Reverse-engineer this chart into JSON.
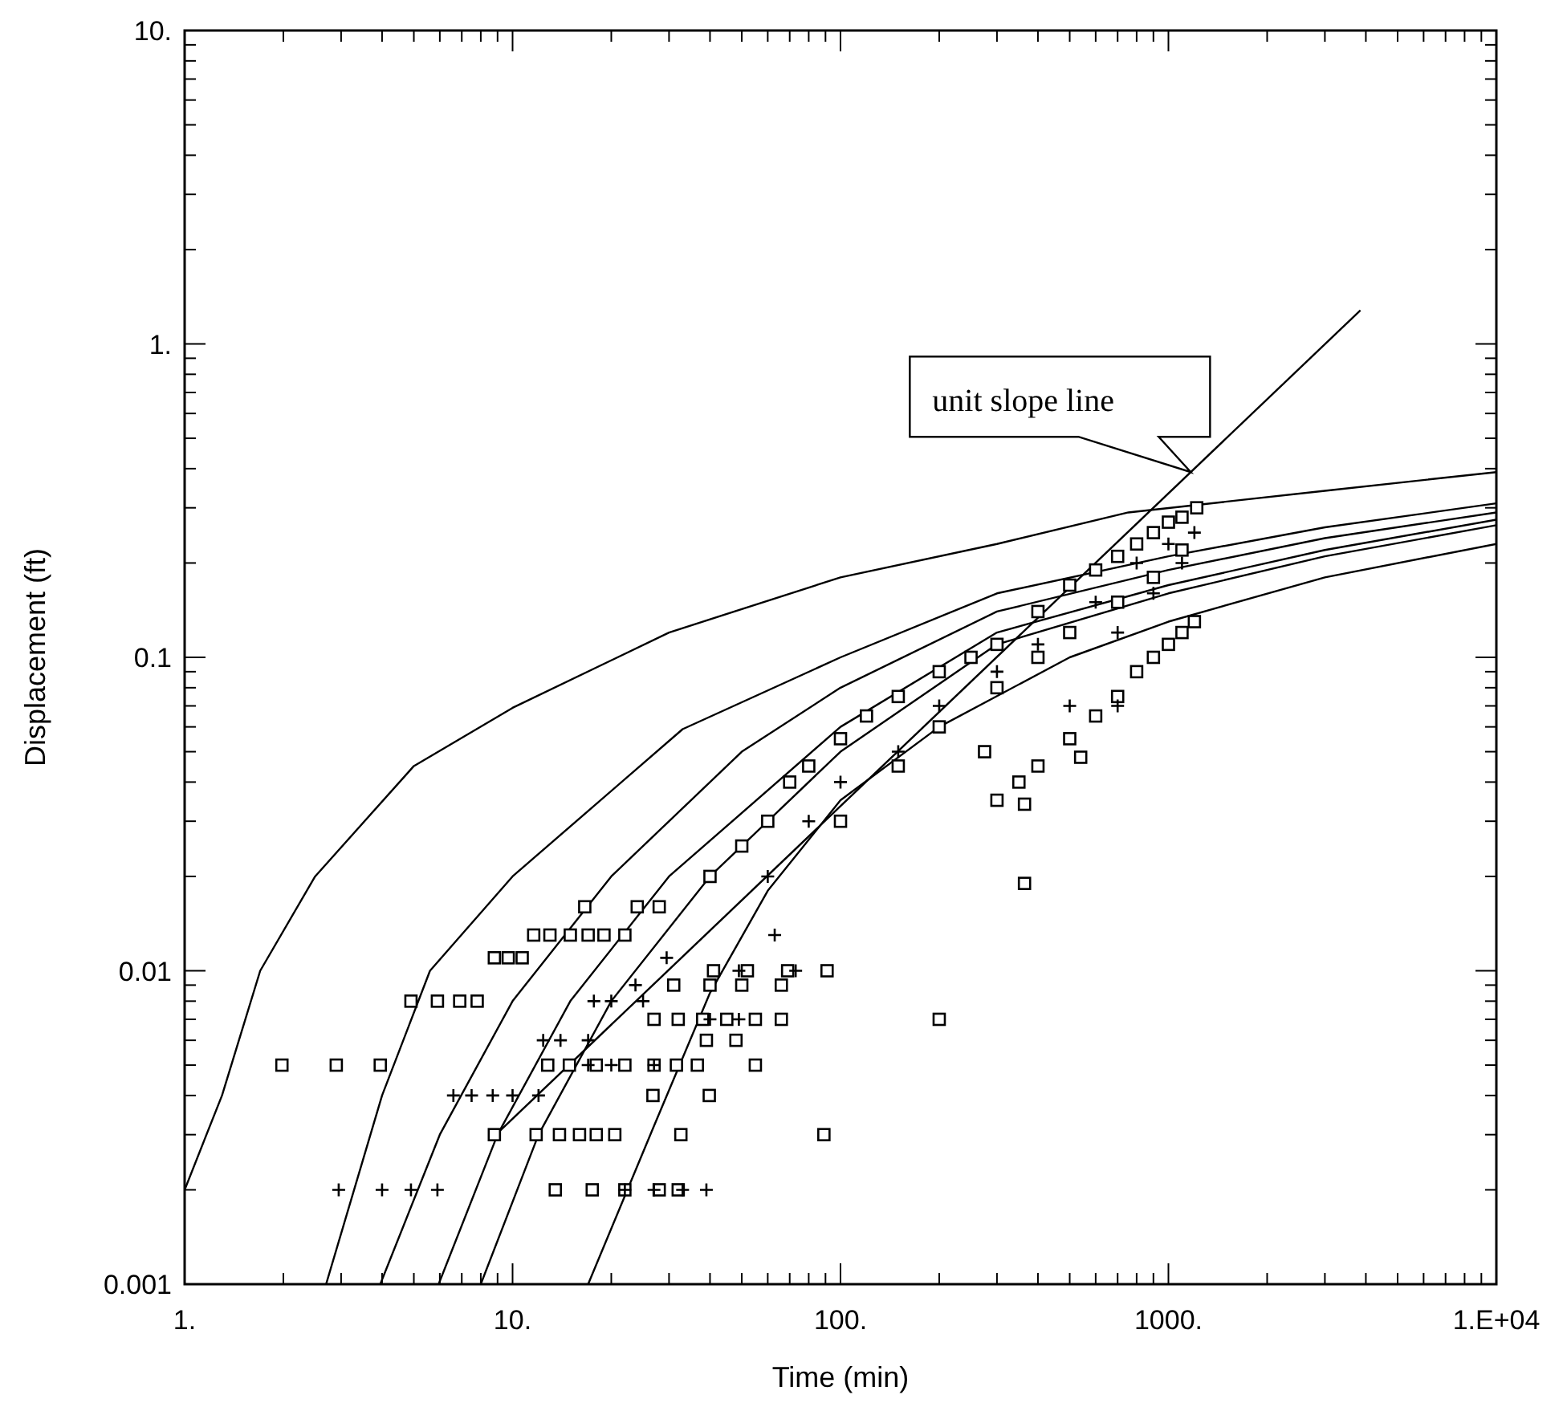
{
  "chart_data": {
    "type": "scatter",
    "xlabel": "Time (min)",
    "ylabel": "Displacement (ft)",
    "log": "xy",
    "xlim": [
      1,
      10000
    ],
    "ylim": [
      0.001,
      10
    ],
    "xticks": [
      {
        "value": 1,
        "label": "1."
      },
      {
        "value": 2,
        "label": null
      },
      {
        "value": 3,
        "label": null
      },
      {
        "value": 4,
        "label": null
      },
      {
        "value": 5,
        "label": null
      },
      {
        "value": 6,
        "label": null
      },
      {
        "value": 7,
        "label": null
      },
      {
        "value": 8,
        "label": null
      },
      {
        "value": 9,
        "label": null
      },
      {
        "value": 10,
        "label": "10."
      },
      {
        "value": 20,
        "label": null
      },
      {
        "value": 30,
        "label": null
      },
      {
        "value": 40,
        "label": null
      },
      {
        "value": 50,
        "label": null
      },
      {
        "value": 60,
        "label": null
      },
      {
        "value": 70,
        "label": null
      },
      {
        "value": 80,
        "label": null
      },
      {
        "value": 90,
        "label": null
      },
      {
        "value": 100,
        "label": "100."
      },
      {
        "value": 200,
        "label": null
      },
      {
        "value": 300,
        "label": null
      },
      {
        "value": 400,
        "label": null
      },
      {
        "value": 500,
        "label": null
      },
      {
        "value": 600,
        "label": null
      },
      {
        "value": 700,
        "label": null
      },
      {
        "value": 800,
        "label": null
      },
      {
        "value": 900,
        "label": null
      },
      {
        "value": 1000,
        "label": "1000."
      },
      {
        "value": 2000,
        "label": null
      },
      {
        "value": 3000,
        "label": null
      },
      {
        "value": 4000,
        "label": null
      },
      {
        "value": 5000,
        "label": null
      },
      {
        "value": 6000,
        "label": null
      },
      {
        "value": 7000,
        "label": null
      },
      {
        "value": 8000,
        "label": null
      },
      {
        "value": 9000,
        "label": null
      },
      {
        "value": 10000,
        "label": "1.E+04"
      }
    ],
    "yticks": [
      0.001,
      {
        "value": 0.002,
        "label": null
      },
      {
        "value": 0.003,
        "label": null
      },
      {
        "value": 0.004,
        "label": null
      },
      {
        "value": 0.005,
        "label": null
      },
      {
        "value": 0.006,
        "label": null
      },
      {
        "value": 0.007,
        "label": null
      },
      {
        "value": 0.008,
        "label": null
      },
      {
        "value": 0.009,
        "label": null
      },
      0.01,
      {
        "value": 0.02,
        "label": null
      },
      {
        "value": 0.03,
        "label": null
      },
      {
        "value": 0.04,
        "label": null
      },
      {
        "value": 0.05,
        "label": null
      },
      {
        "value": 0.06,
        "label": null
      },
      {
        "value": 0.07,
        "label": null
      },
      {
        "value": 0.08,
        "label": null
      },
      {
        "value": 0.09,
        "label": null
      },
      0.1,
      {
        "value": 0.2,
        "label": null
      },
      {
        "value": 0.3,
        "label": null
      },
      {
        "value": 0.4,
        "label": null
      },
      {
        "value": 0.5,
        "label": null
      },
      {
        "value": 0.6,
        "label": null
      },
      {
        "value": 0.7,
        "label": null
      },
      {
        "value": 0.8,
        "label": null
      },
      {
        "value": 0.9,
        "label": null
      },
      {
        "value": 1,
        "label": "1."
      },
      {
        "value": 2,
        "label": null
      },
      {
        "value": 3,
        "label": null
      },
      {
        "value": 4,
        "label": null
      },
      {
        "value": 5,
        "label": null
      },
      {
        "value": 6,
        "label": null
      },
      {
        "value": 7,
        "label": null
      },
      {
        "value": 8,
        "label": null
      },
      {
        "value": 9,
        "label": null
      },
      {
        "value": 10,
        "label": "10."
      }
    ],
    "annotations": [
      {
        "text": "unit slope line",
        "x": 1170,
        "y": 0.39
      }
    ],
    "series": [
      {
        "type": "line",
        "color": "#000000",
        "marker": "none",
        "x": [
          1,
          1.3,
          1.7,
          2.5,
          5,
          10,
          30,
          100,
          300,
          755,
          3000,
          10000
        ],
        "values": [
          0.002,
          0.004,
          0.01,
          0.02,
          0.045,
          0.069,
          0.12,
          0.18,
          0.23,
          0.29,
          0.34,
          0.39
        ]
      },
      {
        "type": "line",
        "color": "#000000",
        "marker": "none",
        "x": [
          2.7,
          4,
          5.6,
          10,
          33,
          100,
          300,
          1000,
          3000,
          10000
        ],
        "values": [
          0.001,
          0.004,
          0.01,
          0.02,
          0.059,
          0.1,
          0.16,
          0.21,
          0.26,
          0.31
        ]
      },
      {
        "type": "line",
        "color": "#000000",
        "marker": "none",
        "x": [
          3.95,
          6,
          10,
          20,
          50,
          100,
          300,
          1000,
          3000,
          10000
        ],
        "values": [
          0.001,
          0.003,
          0.008,
          0.02,
          0.05,
          0.08,
          0.14,
          0.19,
          0.24,
          0.29
        ]
      },
      {
        "type": "line",
        "color": "#000000",
        "marker": "none",
        "x": [
          5.95,
          9,
          15,
          30,
          100,
          300,
          1000,
          3000,
          10000
        ],
        "values": [
          0.001,
          0.003,
          0.008,
          0.02,
          0.06,
          0.12,
          0.17,
          0.22,
          0.275
        ]
      },
      {
        "type": "line",
        "color": "#000000",
        "marker": "none",
        "x": [
          8,
          12,
          20,
          40,
          100,
          300,
          1000,
          3000,
          10000
        ],
        "values": [
          0.001,
          0.003,
          0.008,
          0.02,
          0.05,
          0.11,
          0.16,
          0.21,
          0.264
        ]
      },
      {
        "type": "line",
        "color": "#000000",
        "marker": "none",
        "x": [
          17,
          27,
          40,
          60,
          100,
          200,
          500,
          1000,
          3000,
          10000
        ],
        "values": [
          0.001,
          0.0032,
          0.0085,
          0.018,
          0.035,
          0.06,
          0.1,
          0.13,
          0.18,
          0.23
        ]
      },
      {
        "type": "line",
        "color": "#000000",
        "marker": "none",
        "x": [
          8.9,
          3850
        ],
        "values": [
          0.003,
          1.28
        ]
      },
      {
        "color": "#000000",
        "marker": "square",
        "x": [
          1.98,
          2.9,
          3.95,
          4.9,
          5.9,
          6.9,
          7.8,
          8.8,
          9.7,
          10.7,
          11.6,
          13,
          15,
          17,
          19,
          22,
          16.6,
          24,
          28,
          8.8,
          11.8,
          13.9,
          16,
          18,
          20.5,
          32.6,
          89,
          12.8,
          14.9,
          18,
          22,
          27,
          31.6,
          36.6,
          55,
          13.5,
          17.5,
          22,
          28,
          32,
          26.8,
          39.8,
          39,
          48,
          27,
          32,
          38,
          45,
          55,
          66,
          31,
          40,
          50,
          66,
          41,
          52,
          69,
          91,
          200,
          275,
          364,
          540,
          364,
          40,
          50,
          60,
          70,
          80,
          100,
          120,
          150,
          200,
          250,
          300,
          400,
          500,
          600,
          700,
          800,
          900,
          1000,
          1100,
          1220,
          100,
          150,
          200,
          300,
          400,
          500,
          700,
          900,
          1100,
          300,
          350,
          400,
          500,
          600,
          700,
          800,
          900,
          1000,
          1100,
          1200
        ],
        "values": [
          0.005,
          0.005,
          0.005,
          0.008,
          0.008,
          0.008,
          0.008,
          0.011,
          0.011,
          0.011,
          0.013,
          0.013,
          0.013,
          0.013,
          0.013,
          0.013,
          0.016,
          0.016,
          0.016,
          0.003,
          0.003,
          0.003,
          0.003,
          0.003,
          0.003,
          0.003,
          0.003,
          0.005,
          0.005,
          0.005,
          0.005,
          0.005,
          0.005,
          0.005,
          0.005,
          0.002,
          0.002,
          0.002,
          0.002,
          0.002,
          0.004,
          0.004,
          0.006,
          0.006,
          0.007,
          0.007,
          0.007,
          0.007,
          0.007,
          0.007,
          0.009,
          0.009,
          0.009,
          0.009,
          0.01,
          0.01,
          0.01,
          0.01,
          0.007,
          0.05,
          0.019,
          0.048,
          0.034,
          0.02,
          0.025,
          0.03,
          0.04,
          0.045,
          0.055,
          0.065,
          0.075,
          0.09,
          0.1,
          0.11,
          0.14,
          0.17,
          0.19,
          0.21,
          0.23,
          0.25,
          0.27,
          0.28,
          0.3,
          0.03,
          0.045,
          0.06,
          0.08,
          0.1,
          0.12,
          0.15,
          0.18,
          0.22,
          0.035,
          0.04,
          0.045,
          0.055,
          0.065,
          0.075,
          0.09,
          0.1,
          0.11,
          0.12,
          0.13
        ]
      },
      {
        "color": "#000000",
        "marker": "cross",
        "x": [
          2.95,
          4,
          4.9,
          5.9,
          6.6,
          7.5,
          8.7,
          10,
          12,
          12.4,
          14,
          17,
          17.7,
          20,
          25,
          22,
          27,
          33,
          39,
          23.7,
          29.5,
          17,
          20,
          27,
          40,
          49,
          49,
          73,
          63,
          60,
          80,
          100,
          150,
          200,
          300,
          400,
          600,
          800,
          1000,
          1200,
          1100,
          900,
          700,
          500,
          700
        ],
        "values": [
          0.002,
          0.002,
          0.002,
          0.002,
          0.004,
          0.004,
          0.004,
          0.004,
          0.004,
          0.006,
          0.006,
          0.006,
          0.008,
          0.008,
          0.008,
          0.002,
          0.002,
          0.002,
          0.002,
          0.009,
          0.011,
          0.005,
          0.005,
          0.005,
          0.007,
          0.007,
          0.01,
          0.01,
          0.013,
          0.02,
          0.03,
          0.04,
          0.05,
          0.07,
          0.09,
          0.11,
          0.15,
          0.2,
          0.23,
          0.25,
          0.2,
          0.16,
          0.12,
          0.07,
          0.07
        ]
      }
    ]
  }
}
